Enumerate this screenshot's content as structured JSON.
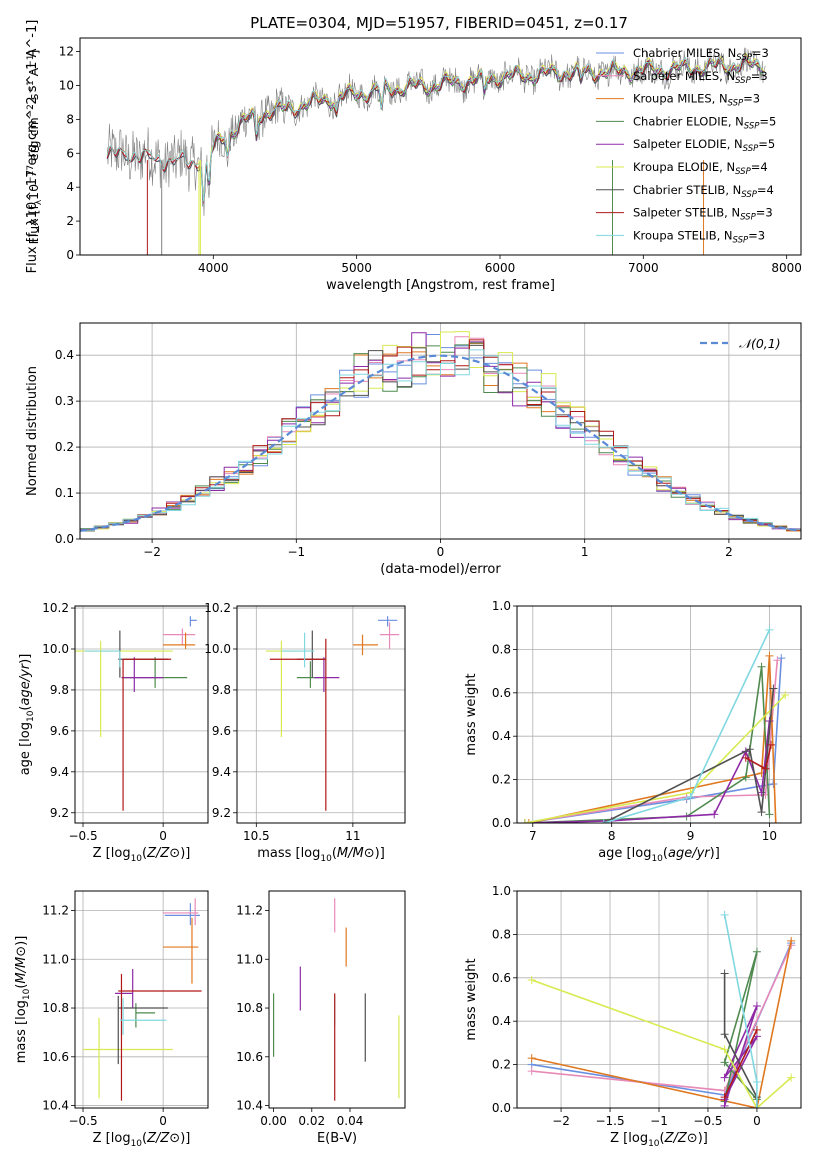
{
  "figure": {
    "title": "PLATE=0304, MJD=51957, FIBERID=0451, z=0.17"
  },
  "colors": {
    "chabrier_miles": "#6a8fe0",
    "salpeter_miles": "#e88ab8",
    "kroupa_miles": "#e07820",
    "chabrier_elodie": "#4f8a4f",
    "salpeter_elodie": "#8e2aa6",
    "kroupa_elodie": "#d8ea50",
    "chabrier_stelib": "#505050",
    "salpeter_stelib": "#b01818",
    "kroupa_stelib": "#80d8e0",
    "data": "#808080",
    "normal": "#5a8ad6",
    "grid": "#b0b0b0"
  },
  "chart_data": [
    {
      "id": "spectrum",
      "type": "line",
      "title": "PLATE=0304, MJD=51957, FIBERID=0451, z=0.17",
      "xlabel": "wavelength [Angstrom, rest frame]",
      "ylabel": "Flux [f_λ10^-17 erg cm^-2 s^-1 A^-1]",
      "xlim": [
        3070,
        8100
      ],
      "ylim": [
        0,
        12.8
      ],
      "xticks": [
        4000,
        5000,
        6000,
        7000,
        8000
      ],
      "yticks": [
        0,
        2,
        4,
        6,
        8,
        10,
        12
      ],
      "grid": false,
      "legend_position": "right",
      "legend": [
        {
          "key": "chabrier_miles",
          "label": "Chabrier MILES, N",
          "sub": "SSP",
          "suffix": "=3"
        },
        {
          "key": "salpeter_miles",
          "label": "Salpeter MILES, N",
          "sub": "SSP",
          "suffix": "=3"
        },
        {
          "key": "kroupa_miles",
          "label": "Kroupa MILES, N",
          "sub": "SSP",
          "suffix": "=3"
        },
        {
          "key": "chabrier_elodie",
          "label": "Chabrier ELODIE, N",
          "sub": "SSP",
          "suffix": "=5"
        },
        {
          "key": "salpeter_elodie",
          "label": "Salpeter ELODIE, N",
          "sub": "SSP",
          "suffix": "=5"
        },
        {
          "key": "kroupa_elodie",
          "label": "Kroupa ELODIE, N",
          "sub": "SSP",
          "suffix": "=4"
        },
        {
          "key": "chabrier_stelib",
          "label": "Chabrier STELIB, N",
          "sub": "SSP",
          "suffix": "=4"
        },
        {
          "key": "salpeter_stelib",
          "label": "Salpeter STELIB, N",
          "sub": "SSP",
          "suffix": "=3"
        },
        {
          "key": "kroupa_stelib",
          "label": "Kroupa STELIB, N",
          "sub": "SSP",
          "suffix": "=3"
        }
      ],
      "continuum": [
        [
          3260,
          5.8
        ],
        [
          3400,
          6.0
        ],
        [
          3600,
          5.6
        ],
        [
          3700,
          5.6
        ],
        [
          3850,
          5.4
        ],
        [
          3950,
          5.8
        ],
        [
          4100,
          7.2
        ],
        [
          4300,
          8.3
        ],
        [
          4500,
          8.6
        ],
        [
          4800,
          9.2
        ],
        [
          5000,
          9.5
        ],
        [
          5200,
          9.8
        ],
        [
          5500,
          10.0
        ],
        [
          5800,
          10.3
        ],
        [
          6000,
          10.5
        ],
        [
          6200,
          10.6
        ],
        [
          6500,
          10.8
        ],
        [
          6800,
          10.8
        ],
        [
          7000,
          10.9
        ],
        [
          7300,
          11.0
        ],
        [
          7600,
          11.2
        ],
        [
          7850,
          11.2
        ]
      ]
    },
    {
      "id": "residuals",
      "type": "histogram",
      "xlabel": "(data-model)/error",
      "ylabel": "Normed distribution",
      "xlim": [
        -2.5,
        2.5
      ],
      "ylim": [
        0,
        0.47
      ],
      "xticks": [
        -2,
        -1,
        0,
        1,
        2
      ],
      "yticks": [
        0.0,
        0.1,
        0.2,
        0.3,
        0.4
      ],
      "grid": true,
      "legend_position": "top-right",
      "legend_label": "𝒩(0,1)",
      "bin_width": 0.1
    },
    {
      "id": "age_vs_z",
      "type": "errorbar",
      "xlabel": "Z [log10(Z/Z⊙)]",
      "ylabel": "age  [log10(age/yr)]",
      "xlim": [
        -0.55,
        0.28
      ],
      "ylim": [
        9.15,
        10.21
      ],
      "xticks": [
        -0.5,
        0.0
      ],
      "yticks": [
        9.2,
        9.4,
        9.6,
        9.8,
        10.0,
        10.2
      ],
      "grid": true,
      "points": [
        {
          "key": "chabrier_miles",
          "x": 0.17,
          "y": 10.14,
          "xe": [
            0.0,
            0.04
          ],
          "ye": [
            0.03,
            0.02
          ]
        },
        {
          "key": "salpeter_miles",
          "x": 0.12,
          "y": 10.07,
          "xe": [
            0.12,
            0.08
          ],
          "ye": [
            0.05,
            0.03
          ]
        },
        {
          "key": "kroupa_miles",
          "x": 0.14,
          "y": 10.02,
          "xe": [
            0.14,
            0.06
          ],
          "ye": [
            0.02,
            0.06
          ]
        },
        {
          "key": "chabrier_elodie",
          "x": -0.05,
          "y": 9.86,
          "xe": [
            0.2,
            0.2
          ],
          "ye": [
            0.05,
            0.1
          ]
        },
        {
          "key": "salpeter_elodie",
          "x": -0.18,
          "y": 9.86,
          "xe": [
            0.08,
            0.18
          ],
          "ye": [
            0.07,
            0.1
          ]
        },
        {
          "key": "kroupa_elodie",
          "x": -0.39,
          "y": 9.99,
          "xe": [
            0.16,
            0.45
          ],
          "ye": [
            0.42,
            0.05
          ]
        },
        {
          "key": "chabrier_stelib",
          "x": -0.27,
          "y": 9.95,
          "xe": [
            0.01,
            0.3
          ],
          "ye": [
            0.09,
            0.14
          ]
        },
        {
          "key": "salpeter_stelib",
          "x": -0.25,
          "y": 9.95,
          "xe": [
            0.0,
            0.3
          ],
          "ye": [
            0.74,
            0.0
          ]
        },
        {
          "key": "kroupa_stelib",
          "x": -0.27,
          "y": 9.99,
          "xe": [
            0.22,
            0.0
          ],
          "ye": [
            0.08,
            0.0
          ]
        }
      ]
    },
    {
      "id": "age_vs_mass",
      "type": "errorbar",
      "xlabel": "mass [log10(M/M⊙)]",
      "ylabel": "",
      "xlim": [
        10.4,
        11.27
      ],
      "ylim": [
        9.15,
        10.21
      ],
      "xticks": [
        10.5,
        11.0
      ],
      "yticks": [
        9.2,
        9.4,
        9.6,
        9.8,
        10.0,
        10.2
      ],
      "grid": true,
      "points": [
        {
          "key": "chabrier_miles",
          "x": 11.18,
          "y": 10.14,
          "xe": [
            0.05,
            0.05
          ],
          "ye": [
            0.03,
            0.02
          ]
        },
        {
          "key": "salpeter_miles",
          "x": 11.19,
          "y": 10.07,
          "xe": [
            0.05,
            0.05
          ],
          "ye": [
            0.07,
            0.06
          ]
        },
        {
          "key": "kroupa_miles",
          "x": 11.05,
          "y": 10.02,
          "xe": [
            0.05,
            0.08
          ],
          "ye": [
            0.05,
            0.05
          ]
        },
        {
          "key": "chabrier_elodie",
          "x": 10.78,
          "y": 9.86,
          "xe": [
            0.07,
            0.06
          ],
          "ye": [
            0.05,
            0.08
          ]
        },
        {
          "key": "salpeter_elodie",
          "x": 10.85,
          "y": 9.86,
          "xe": [
            0.05,
            0.08
          ],
          "ye": [
            0.07,
            0.1
          ]
        },
        {
          "key": "kroupa_elodie",
          "x": 10.63,
          "y": 9.99,
          "xe": [
            0.08,
            0.1
          ],
          "ye": [
            0.42,
            0.05
          ]
        },
        {
          "key": "chabrier_stelib",
          "x": 10.79,
          "y": 9.95,
          "xe": [
            0.08,
            0.06
          ],
          "ye": [
            0.09,
            0.14
          ]
        },
        {
          "key": "salpeter_stelib",
          "x": 10.86,
          "y": 9.95,
          "xe": [
            0.29,
            0.0
          ],
          "ye": [
            0.74,
            0.1
          ]
        },
        {
          "key": "kroupa_stelib",
          "x": 10.75,
          "y": 9.99,
          "xe": [
            0.12,
            0.05
          ],
          "ye": [
            0.08,
            0.09
          ]
        }
      ]
    },
    {
      "id": "weight_vs_age",
      "type": "line",
      "xlabel": "age  [log10(age/yr)]",
      "ylabel": "mass weight",
      "xlim": [
        6.8,
        10.4
      ],
      "ylim": [
        0,
        1.0
      ],
      "xticks": [
        7,
        8,
        9,
        10
      ],
      "yticks": [
        0.0,
        0.2,
        0.4,
        0.6,
        0.8,
        1.0
      ],
      "grid": true,
      "series": [
        {
          "key": "chabrier_miles",
          "x": [
            6.9,
            8.95,
            10.05,
            10.15
          ],
          "y": [
            0.0,
            0.11,
            0.18,
            0.76
          ]
        },
        {
          "key": "salpeter_miles",
          "x": [
            6.9,
            8.95,
            9.95,
            10.1
          ],
          "y": [
            0.0,
            0.12,
            0.13,
            0.75
          ]
        },
        {
          "key": "kroupa_miles",
          "x": [
            6.95,
            9.9,
            10.0,
            10.08
          ],
          "y": [
            0.0,
            0.23,
            0.77,
            0.0
          ]
        },
        {
          "key": "chabrier_elodie",
          "x": [
            6.9,
            8.95,
            9.7,
            9.9,
            10.0
          ],
          "y": [
            0.0,
            0.03,
            0.21,
            0.72,
            0.04
          ]
        },
        {
          "key": "salpeter_elodie",
          "x": [
            6.9,
            8.0,
            9.3,
            9.7,
            9.9,
            10.0
          ],
          "y": [
            0.0,
            0.01,
            0.04,
            0.33,
            0.14,
            0.47
          ]
        },
        {
          "key": "kroupa_elodie",
          "x": [
            6.9,
            9.0,
            10.2
          ],
          "y": [
            0.0,
            0.14,
            0.59
          ]
        },
        {
          "key": "chabrier_stelib",
          "x": [
            7.9,
            9.75,
            9.9,
            10.05
          ],
          "y": [
            0.0,
            0.34,
            0.05,
            0.62
          ]
        },
        {
          "key": "salpeter_stelib",
          "x": [
            9.7,
            9.95,
            10.02
          ],
          "y": [
            0.3,
            0.25,
            0.36
          ]
        },
        {
          "key": "kroupa_stelib",
          "x": [
            7.9,
            9.0,
            10.0
          ],
          "y": [
            0.0,
            0.12,
            0.89
          ]
        }
      ]
    },
    {
      "id": "mass_vs_z",
      "type": "errorbar",
      "xlabel": "Z [log10(Z/Z⊙)]",
      "ylabel": "mass [log10(M/M⊙)]",
      "xlim": [
        -0.55,
        0.28
      ],
      "ylim": [
        10.39,
        11.28
      ],
      "xticks": [
        -0.5,
        0.0
      ],
      "yticks": [
        10.4,
        10.6,
        10.8,
        11.0,
        11.2
      ],
      "grid": true,
      "points": [
        {
          "key": "chabrier_miles",
          "x": 0.17,
          "y": 11.18,
          "xe": [
            0.16,
            0.06
          ],
          "ye": [
            0.04,
            0.05
          ]
        },
        {
          "key": "salpeter_miles",
          "x": 0.2,
          "y": 11.19,
          "xe": [
            0.2,
            0.02
          ],
          "ye": [
            0.05,
            0.06
          ]
        },
        {
          "key": "kroupa_miles",
          "x": 0.18,
          "y": 11.05,
          "xe": [
            0.18,
            0.04
          ],
          "ye": [
            0.15,
            0.12
          ]
        },
        {
          "key": "chabrier_elodie",
          "x": -0.17,
          "y": 10.78,
          "xe": [
            0.0,
            0.12
          ],
          "ye": [
            0.06,
            0.04
          ]
        },
        {
          "key": "salpeter_elodie",
          "x": -0.19,
          "y": 10.86,
          "xe": [
            0.11,
            0.0
          ],
          "ye": [
            0.06,
            0.1
          ]
        },
        {
          "key": "kroupa_elodie",
          "x": -0.4,
          "y": 10.63,
          "xe": [
            0.1,
            0.46
          ],
          "ye": [
            0.2,
            0.13
          ]
        },
        {
          "key": "chabrier_stelib",
          "x": -0.28,
          "y": 10.8,
          "xe": [
            0.0,
            0.31
          ],
          "ye": [
            0.23,
            0.05
          ]
        },
        {
          "key": "salpeter_stelib",
          "x": -0.26,
          "y": 10.87,
          "xe": [
            0.02,
            0.5
          ],
          "ye": [
            0.45,
            0.07
          ]
        },
        {
          "key": "kroupa_stelib",
          "x": -0.25,
          "y": 10.75,
          "xe": [
            0.02,
            0.27
          ],
          "ye": [
            0.06,
            0.09
          ]
        }
      ]
    },
    {
      "id": "mass_vs_ebv",
      "type": "errorbar",
      "xlabel": "E(B-V)",
      "ylabel": "",
      "xlim": [
        -0.003,
        0.086
      ],
      "ylim": [
        10.39,
        11.28
      ],
      "xticks": [
        0.0,
        0.025,
        0.05
      ],
      "xticklabels": [
        "0.00",
        "0.02",
        "0.04"
      ],
      "yticks": [
        10.4,
        10.6,
        10.8,
        11.0,
        11.2
      ],
      "grid": false,
      "points": [
        {
          "key": "chabrier_elodie",
          "x": 0.0,
          "y": 10.73,
          "ye": [
            0.13,
            0.13
          ]
        },
        {
          "key": "salpeter_elodie",
          "x": 0.0175,
          "y": 10.88,
          "ye": [
            0.09,
            0.09
          ]
        },
        {
          "key": "salpeter_miles",
          "x": 0.04,
          "y": 11.18,
          "ye": [
            0.07,
            0.07
          ]
        },
        {
          "key": "kroupa_stelib",
          "x": 0.04,
          "y": 10.79,
          "ye": [
            0.06,
            0.06
          ]
        },
        {
          "key": "salpeter_stelib",
          "x": 0.04,
          "y": 10.64,
          "ye": [
            0.22,
            0.22
          ]
        },
        {
          "key": "kroupa_miles",
          "x": 0.0475,
          "y": 11.05,
          "ye": [
            0.08,
            0.08
          ]
        },
        {
          "key": "chabrier_stelib",
          "x": 0.06,
          "y": 10.72,
          "ye": [
            0.14,
            0.14
          ]
        },
        {
          "key": "kroupa_elodie",
          "x": 0.082,
          "y": 10.6,
          "ye": [
            0.17,
            0.17
          ]
        }
      ]
    },
    {
      "id": "weight_vs_z",
      "type": "line",
      "xlabel": "Z [log10(Z/Z⊙)]",
      "ylabel": "mass weight",
      "xlim": [
        -2.45,
        0.45
      ],
      "ylim": [
        0,
        1.0
      ],
      "xticks": [
        -2.0,
        -1.5,
        -1.0,
        -0.5,
        0.0
      ],
      "yticks": [
        0.0,
        0.2,
        0.4,
        0.6,
        0.8,
        1.0
      ],
      "grid": true,
      "series": [
        {
          "key": "chabrier_miles",
          "x": [
            -2.3,
            -0.33,
            0.35
          ],
          "y": [
            0.2,
            0.06,
            0.76
          ]
        },
        {
          "key": "salpeter_miles",
          "x": [
            -2.3,
            -0.33,
            0.35
          ],
          "y": [
            0.17,
            0.08,
            0.75
          ]
        },
        {
          "key": "kroupa_miles",
          "x": [
            -2.3,
            0.0,
            0.35
          ],
          "y": [
            0.23,
            0.0,
            0.77
          ]
        },
        {
          "key": "chabrier_elodie",
          "x": [
            -0.33,
            0.0,
            -0.33,
            0.0
          ],
          "y": [
            0.03,
            0.72,
            0.21,
            0.04
          ]
        },
        {
          "key": "salpeter_elodie",
          "x": [
            -0.33,
            0.0,
            -0.33,
            0.0,
            -0.33
          ],
          "y": [
            0.04,
            0.33,
            0.14,
            0.47,
            0.01
          ]
        },
        {
          "key": "kroupa_elodie",
          "x": [
            -2.3,
            -0.33,
            0.0,
            0.35
          ],
          "y": [
            0.59,
            0.27,
            0.0,
            0.14
          ]
        },
        {
          "key": "chabrier_stelib",
          "x": [
            -0.33,
            -0.33,
            0.0,
            0.0
          ],
          "y": [
            0.62,
            0.34,
            0.05,
            0.0
          ]
        },
        {
          "key": "salpeter_stelib",
          "x": [
            -0.33,
            0.0
          ],
          "y": [
            0.05,
            0.36
          ]
        },
        {
          "key": "kroupa_stelib",
          "x": [
            -0.33,
            0.0,
            0.0
          ],
          "y": [
            0.89,
            0.12,
            0.0
          ]
        }
      ]
    }
  ]
}
